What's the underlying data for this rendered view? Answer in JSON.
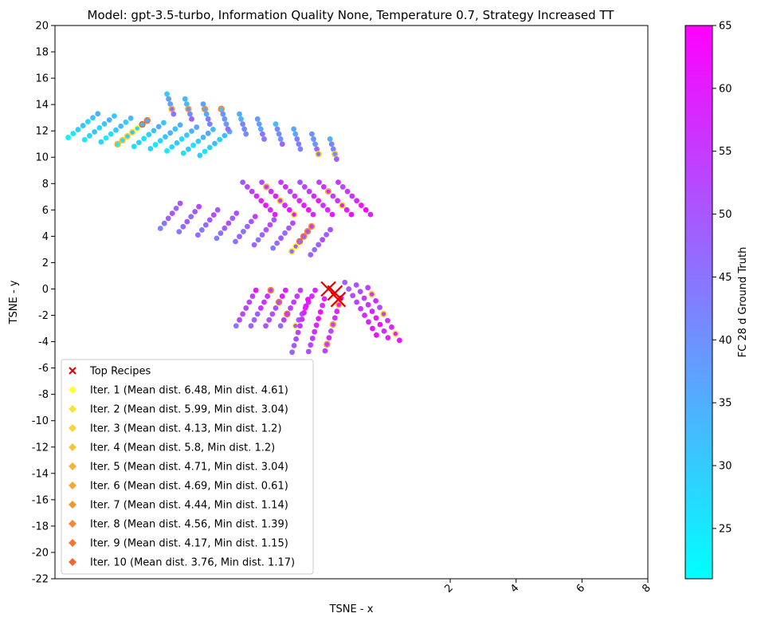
{
  "chart_data": {
    "type": "scatter",
    "title": "Model: gpt-3.5-turbo, Information Quality None, Temperature 0.7, Strategy Increased TT",
    "xlabel": "TSNE - x",
    "ylabel": "TSNE - y",
    "xlim": [
      -10,
      8
    ],
    "ylim": [
      -22,
      20
    ],
    "xticks": [
      2,
      4,
      6,
      8
    ],
    "yticks": [
      20,
      18,
      16,
      14,
      12,
      10,
      8,
      6,
      4,
      2,
      0,
      -2,
      -4,
      -6,
      -8,
      -10,
      -12,
      -14,
      -16,
      -18,
      -20,
      -22
    ],
    "grid": false,
    "legend_position": "lower-left",
    "colorbar": {
      "label": "FC 28 d Ground Truth",
      "range": [
        21,
        65
      ],
      "ticks": [
        25,
        30,
        35,
        40,
        45,
        50,
        55,
        60,
        65
      ],
      "cmap": [
        "#00ffff",
        "#ff00ff"
      ]
    },
    "top_recipes": {
      "name": "Top Recipes",
      "color": "#e00000",
      "marker": "x",
      "points": [
        [
          -1.7,
          0.0
        ],
        [
          -1.5,
          -0.3
        ],
        [
          -1.4,
          -0.8
        ]
      ]
    },
    "iterations": [
      {
        "name": "Iter. 1 (Mean dist. 6.48, Min dist. 4.61)",
        "color": "#ffff33"
      },
      {
        "name": "Iter. 2 (Mean dist. 5.99, Min dist. 3.04)",
        "color": "#f7e436"
      },
      {
        "name": "Iter. 3 (Mean dist. 4.13, Min dist. 1.2)",
        "color": "#f7d635"
      },
      {
        "name": "Iter. 4 (Mean dist. 5.8, Min dist. 1.2)",
        "color": "#f7c635"
      },
      {
        "name": "Iter. 5 (Mean dist. 4.71, Min dist. 3.04)",
        "color": "#f7b434"
      },
      {
        "name": "Iter. 6 (Mean dist. 4.69, Min dist. 0.61)",
        "color": "#f7a533"
      },
      {
        "name": "Iter. 7 (Mean dist. 4.44, Min dist. 1.14)",
        "color": "#f59531"
      },
      {
        "name": "Iter. 8 (Mean dist. 4.56, Min dist. 1.39)",
        "color": "#f58530"
      },
      {
        "name": "Iter. 9 (Mean dist. 4.17, Min dist. 1.15)",
        "color": "#f5742f"
      },
      {
        "name": "Iter. 10 (Mean dist. 3.76, Min dist. 1.17)",
        "color": "#f5652e"
      }
    ],
    "clusters": [
      {
        "name": "cluster-a",
        "start": [
          -9.6,
          11.5
        ],
        "row_step": [
          0.15,
          0.3
        ],
        "col_step": [
          0.5,
          -0.17
        ],
        "rows": 7,
        "cols": 9,
        "value_range": [
          22,
          38
        ]
      },
      {
        "name": "cluster-b",
        "start": [
          -6.6,
          14.8
        ],
        "row_step": [
          0.05,
          -0.38
        ],
        "col_step": [
          0.55,
          -0.38
        ],
        "rows": 5,
        "cols": 10,
        "value_range": [
          30,
          50
        ]
      },
      {
        "name": "cluster-c",
        "start": [
          -6.8,
          4.6
        ],
        "row_step": [
          0.12,
          0.38
        ],
        "col_step": [
          0.57,
          -0.25
        ],
        "rows": 6,
        "cols": 9,
        "value_range": [
          42,
          55
        ]
      },
      {
        "name": "cluster-d",
        "start": [
          -4.3,
          8.1
        ],
        "row_step": [
          0.14,
          -0.35
        ],
        "col_step": [
          0.58,
          0.0
        ],
        "rows": 8,
        "cols": 6,
        "value_range": [
          50,
          65
        ]
      },
      {
        "name": "cluster-e",
        "start": [
          -4.5,
          -2.8
        ],
        "row_step": [
          0.1,
          0.45
        ],
        "col_step": [
          0.45,
          0.0
        ],
        "rows": 7,
        "cols": 5,
        "value_range": [
          45,
          62
        ]
      },
      {
        "name": "cluster-f",
        "start": [
          -2.8,
          -4.8
        ],
        "row_step": [
          0.06,
          0.5
        ],
        "col_step": [
          0.5,
          0.05
        ],
        "rows": 9,
        "cols": 3,
        "value_range": [
          48,
          65
        ]
      },
      {
        "name": "cluster-g",
        "start": [
          -1.2,
          0.5
        ],
        "row_step": [
          0.12,
          -0.5
        ],
        "col_step": [
          0.35,
          -0.2
        ],
        "rows": 9,
        "cols": 3,
        "value_range": [
          48,
          65
        ]
      }
    ]
  }
}
